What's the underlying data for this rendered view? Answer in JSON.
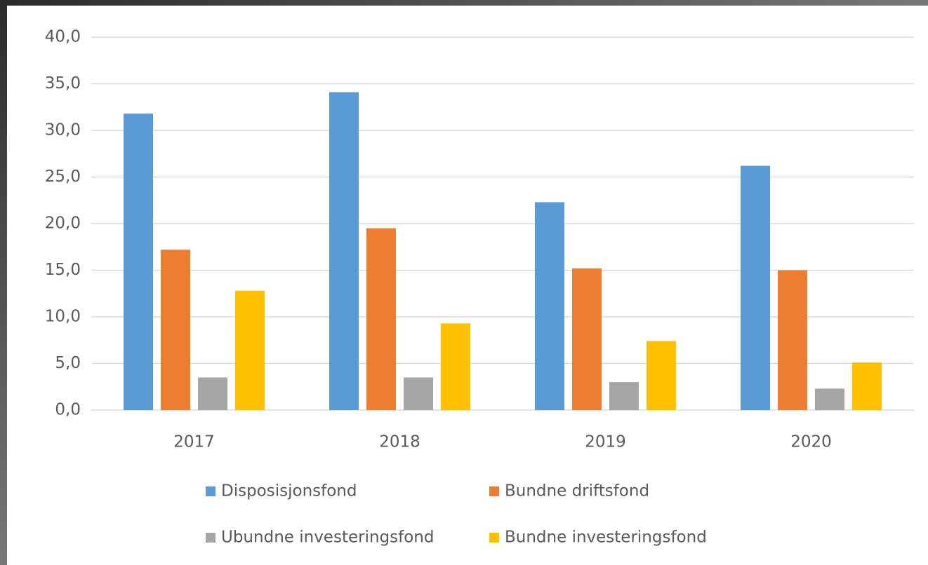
{
  "chart_data": {
    "type": "bar",
    "categories": [
      "2017",
      "2018",
      "2019",
      "2020"
    ],
    "series": [
      {
        "name": "Disposisjonsfond",
        "color": "#5b9bd5",
        "values": [
          31.8,
          34.1,
          22.3,
          26.2
        ]
      },
      {
        "name": "Bundne driftsfond",
        "color": "#ed7d31",
        "values": [
          17.2,
          19.5,
          15.2,
          15.0
        ]
      },
      {
        "name": "Ubundne investeringsfond",
        "color": "#a5a5a5",
        "values": [
          3.5,
          3.5,
          3.0,
          2.3
        ]
      },
      {
        "name": "Bundne investeringsfond",
        "color": "#ffc000",
        "values": [
          12.8,
          9.3,
          7.4,
          5.1
        ]
      }
    ],
    "ylim": [
      0,
      40
    ],
    "yticks": [
      {
        "value": 0,
        "label": "0,0"
      },
      {
        "value": 5,
        "label": "5,0"
      },
      {
        "value": 10,
        "label": "10,0"
      },
      {
        "value": 15,
        "label": "15,0"
      },
      {
        "value": 20,
        "label": "20,0"
      },
      {
        "value": 25,
        "label": "25,0"
      },
      {
        "value": 30,
        "label": "30,0"
      },
      {
        "value": 35,
        "label": "35,0"
      },
      {
        "value": 40,
        "label": "40,0"
      }
    ],
    "grid": true,
    "legend": "bottom"
  }
}
